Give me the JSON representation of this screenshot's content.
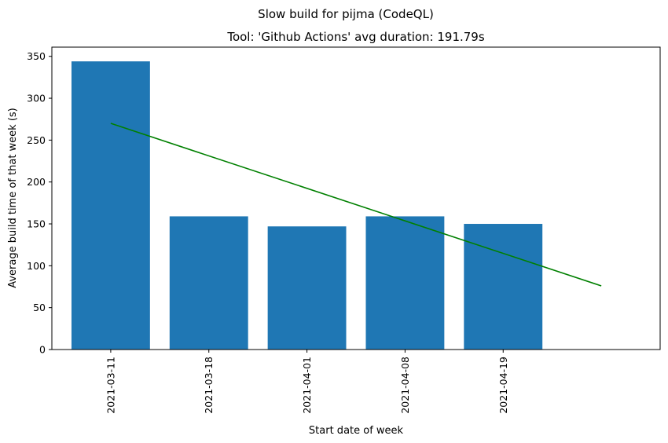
{
  "chart_data": {
    "type": "bar",
    "suptitle": "Slow build for pijma (CodeQL)",
    "title": "Tool: 'Github Actions' avg duration: 191.79s",
    "xlabel": "Start date of week",
    "ylabel": "Average build time of that week (s)",
    "categories": [
      "2021-03-11",
      "2021-03-18",
      "2021-04-01",
      "2021-04-08",
      "2021-04-19"
    ],
    "values": [
      344,
      159,
      147,
      159,
      150
    ],
    "bar_color": "#1f77b4",
    "yticks": [
      0,
      50,
      100,
      150,
      200,
      250,
      300,
      350
    ],
    "ylim": [
      0,
      361
    ],
    "xlim": [
      -0.6,
      5.6
    ],
    "trend": {
      "name": "",
      "color": "#008000",
      "x": [
        0,
        5
      ],
      "y": [
        270,
        76
      ]
    },
    "grid": false,
    "legend": "none"
  }
}
